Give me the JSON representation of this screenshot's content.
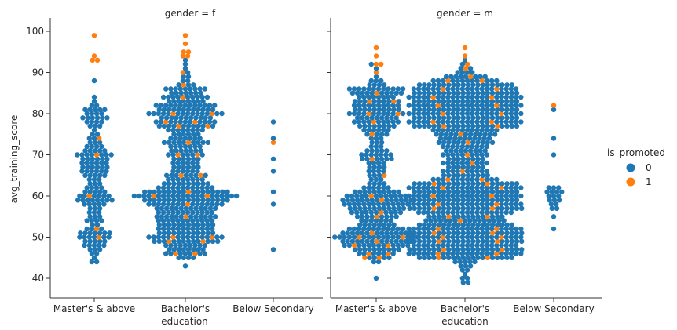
{
  "chart_data": {
    "type": "swarm",
    "facet_variable": "gender",
    "panel_titles": [
      "gender = f",
      "gender = m"
    ],
    "xlabel": "education",
    "ylabel": "avg_training_score",
    "categories": [
      "Master's & above",
      "Bachelor's",
      "Below Secondary"
    ],
    "ylim": [
      35,
      102
    ],
    "yticks": [
      40,
      50,
      60,
      70,
      80,
      90,
      100
    ],
    "grid": false,
    "legend": {
      "title": "is_promoted",
      "placement": "right",
      "entries": [
        {
          "label": "0",
          "color": "#1f77b4"
        },
        {
          "label": "1",
          "color": "#ff7f0e"
        }
      ]
    },
    "panels": [
      {
        "gender": "f",
        "groups": [
          {
            "category": "Master's & above",
            "counts_0": {
              "44": 2,
              "45": 1,
              "46": 2,
              "47": 3,
              "48": 5,
              "49": 5,
              "50": 6,
              "51": 7,
              "52": 3,
              "53": 2,
              "54": 4,
              "55": 3,
              "56": 3,
              "57": 3,
              "58": 5,
              "59": 8,
              "60": 6,
              "61": 5,
              "62": 4,
              "63": 3,
              "64": 3,
              "65": 5,
              "66": 6,
              "67": 6,
              "68": 6,
              "69": 6,
              "70": 7,
              "71": 5,
              "72": 4,
              "73": 3,
              "74": 2,
              "75": 2,
              "76": 1,
              "77": 3,
              "78": 4,
              "79": 6,
              "80": 4,
              "81": 5,
              "82": 2,
              "83": 1,
              "84": 1,
              "88": 1
            },
            "counts_1": {
              "50": 1,
              "52": 1,
              "60": 1,
              "70": 1,
              "74": 1,
              "93": 2,
              "94": 1,
              "99": 1
            }
          },
          {
            "category": "Bachelor's",
            "counts_0": {
              "43": 1,
              "45": 4,
              "46": 7,
              "47": 8,
              "48": 9,
              "49": 12,
              "50": 14,
              "51": 12,
              "52": 12,
              "53": 12,
              "54": 12,
              "55": 12,
              "56": 12,
              "57": 13,
              "58": 15,
              "59": 18,
              "60": 20,
              "61": 17,
              "62": 12,
              "63": 10,
              "64": 8,
              "65": 7,
              "66": 6,
              "67": 6,
              "68": 6,
              "69": 6,
              "70": 6,
              "71": 7,
              "72": 7,
              "73": 9,
              "74": 7,
              "75": 6,
              "76": 8,
              "77": 10,
              "78": 11,
              "79": 11,
              "80": 14,
              "81": 12,
              "82": 13,
              "83": 8,
              "84": 9,
              "85": 7,
              "86": 9,
              "87": 3,
              "88": 2,
              "89": 2,
              "90": 1,
              "91": 1,
              "92": 1,
              "93": 1
            },
            "counts_1": {
              "46": 2,
              "49": 2,
              "50": 2,
              "55": 1,
              "58": 1,
              "60": 2,
              "61": 1,
              "65": 2,
              "70": 2,
              "73": 1,
              "77": 2,
              "78": 2,
              "80": 2,
              "84": 1,
              "87": 1,
              "90": 1,
              "94": 2,
              "95": 2,
              "97": 1,
              "99": 1
            }
          },
          {
            "category": "Below Secondary",
            "counts_0": {
              "47": 1,
              "58": 1,
              "61": 1,
              "66": 1,
              "69": 1,
              "74": 1,
              "78": 1
            },
            "counts_1": {
              "73": 1
            }
          }
        ]
      },
      {
        "gender": "m",
        "groups": [
          {
            "category": "Master's & above",
            "counts_0": {
              "40": 1,
              "44": 2,
              "45": 4,
              "46": 6,
              "47": 10,
              "48": 12,
              "49": 14,
              "50": 16,
              "51": 14,
              "52": 12,
              "53": 8,
              "54": 7,
              "55": 8,
              "56": 10,
              "57": 12,
              "58": 14,
              "59": 14,
              "60": 12,
              "61": 10,
              "62": 6,
              "63": 4,
              "64": 3,
              "65": 3,
              "66": 4,
              "67": 4,
              "68": 4,
              "69": 6,
              "70": 7,
              "71": 5,
              "72": 3,
              "73": 3,
              "74": 3,
              "75": 4,
              "76": 6,
              "77": 8,
              "78": 9,
              "79": 9,
              "80": 10,
              "81": 10,
              "82": 10,
              "83": 8,
              "84": 8,
              "85": 10,
              "86": 12,
              "87": 4,
              "88": 3,
              "89": 1,
              "91": 1,
              "92": 1
            },
            "counts_1": {
              "45": 2,
              "46": 2,
              "48": 2,
              "49": 1,
              "50": 2,
              "51": 1,
              "55": 1,
              "56": 1,
              "59": 1,
              "60": 1,
              "65": 1,
              "69": 1,
              "75": 1,
              "78": 1,
              "80": 2,
              "83": 2,
              "85": 1,
              "90": 1,
              "92": 2,
              "94": 1,
              "96": 1
            }
          },
          {
            "category": "Bachelor's",
            "counts_0": {
              "39": 2,
              "40": 2,
              "41": 1,
              "42": 2,
              "43": 3,
              "44": 5,
              "45": 18,
              "46": 22,
              "47": 22,
              "48": 22,
              "49": 22,
              "50": 22,
              "51": 22,
              "52": 22,
              "53": 20,
              "54": 16,
              "55": 14,
              "56": 20,
              "57": 22,
              "58": 22,
              "59": 22,
              "60": 22,
              "61": 22,
              "62": 22,
              "63": 20,
              "64": 12,
              "65": 10,
              "66": 9,
              "67": 8,
              "68": 9,
              "69": 8,
              "70": 9,
              "71": 9,
              "72": 10,
              "73": 11,
              "74": 11,
              "75": 12,
              "76": 14,
              "77": 20,
              "78": 22,
              "79": 22,
              "80": 22,
              "81": 22,
              "82": 22,
              "83": 22,
              "84": 22,
              "85": 22,
              "86": 20,
              "87": 20,
              "88": 12,
              "89": 8,
              "90": 4,
              "91": 2,
              "92": 1,
              "93": 1
            },
            "counts_1": {
              "45": 2,
              "46": 2,
              "47": 2,
              "49": 2,
              "50": 2,
              "51": 2,
              "52": 2,
              "54": 1,
              "55": 2,
              "57": 2,
              "58": 2,
              "60": 2,
              "62": 2,
              "63": 2,
              "64": 2,
              "66": 1,
              "68": 1,
              "70": 1,
              "73": 1,
              "75": 1,
              "77": 2,
              "78": 2,
              "80": 2,
              "82": 2,
              "84": 2,
              "86": 2,
              "88": 2,
              "89": 1,
              "91": 1,
              "92": 1,
              "94": 1,
              "96": 1
            }
          },
          {
            "category": "Below Secondary",
            "counts_0": {
              "52": 1,
              "55": 1,
              "57": 2,
              "58": 2,
              "59": 3,
              "60": 3,
              "61": 4,
              "62": 3,
              "70": 1,
              "74": 1,
              "81": 1
            },
            "counts_1": {
              "82": 1
            }
          }
        ]
      }
    ]
  }
}
